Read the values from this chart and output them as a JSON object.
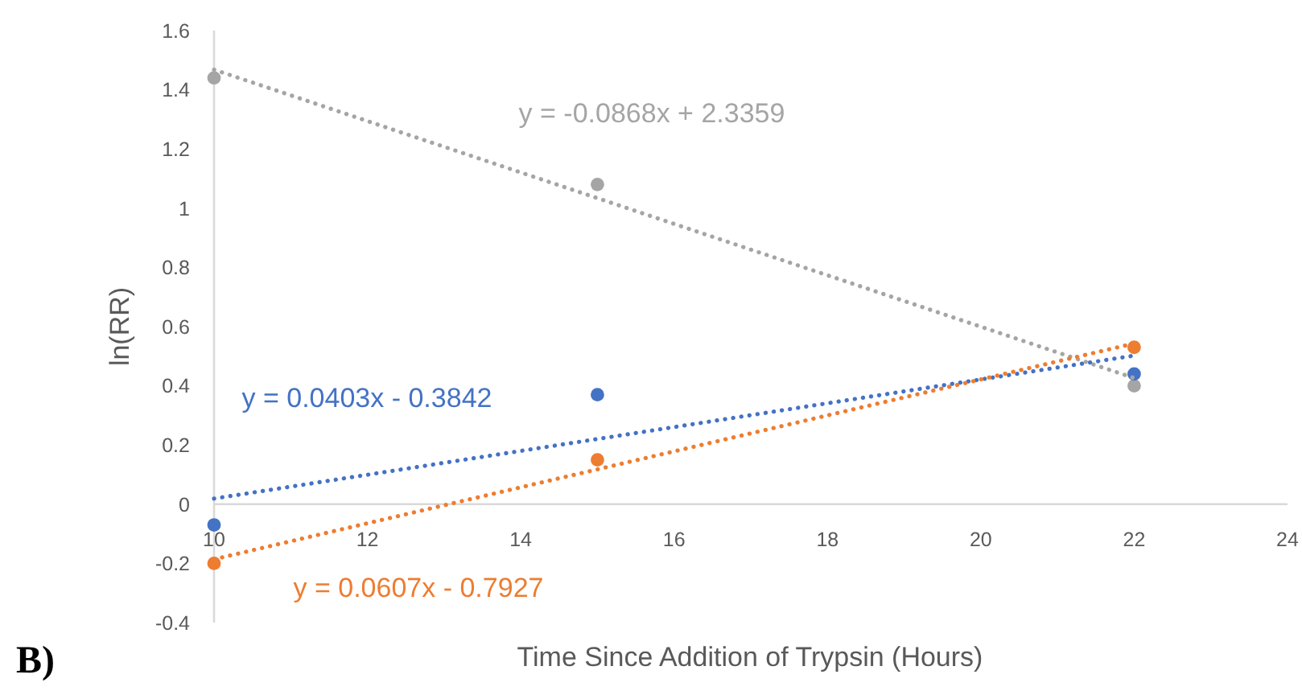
{
  "chart_data": {
    "type": "scatter",
    "xlabel": "Time Since Addition of Trypsin (Hours)",
    "ylabel": "ln(RR)",
    "xlim": [
      10,
      24
    ],
    "xticks": [
      10,
      12,
      14,
      16,
      18,
      20,
      22,
      24
    ],
    "ylim": [
      -0.4,
      1.6
    ],
    "yticks": [
      -0.4,
      -0.2,
      0,
      0.2,
      0.4,
      0.6,
      0.8,
      1,
      1.2,
      1.4,
      1.6
    ],
    "series": [
      {
        "color": "#a5a5a5",
        "marker": "circle",
        "x": [
          10,
          15,
          22
        ],
        "values": [
          1.44,
          1.08,
          0.4
        ]
      },
      {
        "color": "#4472c4",
        "marker": "circle",
        "x": [
          10,
          15,
          22
        ],
        "values": [
          -0.07,
          0.37,
          0.44
        ]
      },
      {
        "color": "#ed7d31",
        "marker": "circle",
        "x": [
          10,
          15,
          22
        ],
        "values": [
          -0.2,
          0.15,
          0.53
        ]
      },
      {
        "type": "line",
        "color": "#a5a5a5",
        "line_style": "dotted",
        "x": [
          10,
          22
        ],
        "values": [
          1.468,
          0.426
        ]
      },
      {
        "type": "line",
        "color": "#4472c4",
        "line_style": "dotted",
        "x": [
          10,
          22
        ],
        "values": [
          0.019,
          0.502
        ]
      },
      {
        "type": "line",
        "color": "#ed7d31",
        "line_style": "dotted",
        "x": [
          10,
          22
        ],
        "values": [
          -0.186,
          0.543
        ]
      }
    ],
    "annotations": [
      "y = -0.0868x + 2.3359",
      "y = 0.0403x - 0.3842",
      "y = 0.0607x - 0.7927",
      "B)"
    ]
  }
}
